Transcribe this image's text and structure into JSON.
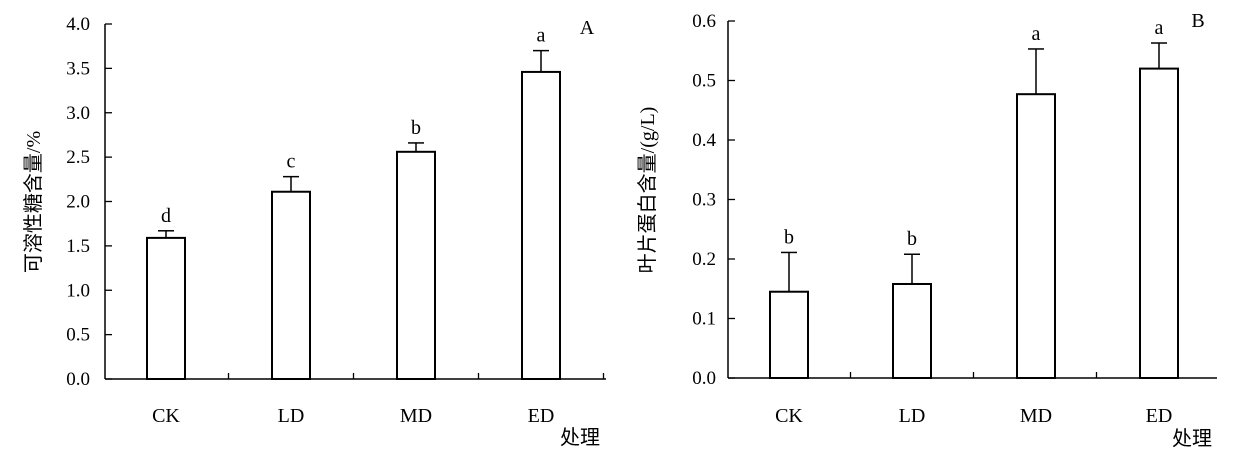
{
  "chart_data": [
    {
      "type": "bar",
      "panel_label": "A",
      "categories": [
        "CK",
        "LD",
        "MD",
        "ED"
      ],
      "values": [
        1.59,
        2.11,
        2.56,
        3.46
      ],
      "errors": [
        0.08,
        0.17,
        0.1,
        0.24
      ],
      "significance": [
        "d",
        "c",
        "b",
        "a"
      ],
      "ylabel": "可溶性糖含量/%",
      "xlabel": "处理",
      "ylim": [
        0,
        4.0
      ],
      "yticks": [
        "0.0",
        "0.5",
        "1.0",
        "1.5",
        "2.0",
        "2.5",
        "3.0",
        "3.5",
        "4.0"
      ],
      "grid": false,
      "bar_fill": "#ffffff",
      "bar_stroke": "#000000"
    },
    {
      "type": "bar",
      "panel_label": "B",
      "categories": [
        "CK",
        "LD",
        "MD",
        "ED"
      ],
      "values": [
        0.145,
        0.158,
        0.477,
        0.52
      ],
      "errors": [
        0.066,
        0.05,
        0.076,
        0.043
      ],
      "significance": [
        "b",
        "b",
        "a",
        "a"
      ],
      "ylabel": "叶片蛋白含量/(g/L)",
      "xlabel": "处理",
      "ylim": [
        0,
        0.6
      ],
      "yticks": [
        "0.0",
        "0.1",
        "0.2",
        "0.3",
        "0.4",
        "0.5",
        "0.6"
      ],
      "grid": false,
      "bar_fill": "#ffffff",
      "bar_stroke": "#000000"
    }
  ]
}
